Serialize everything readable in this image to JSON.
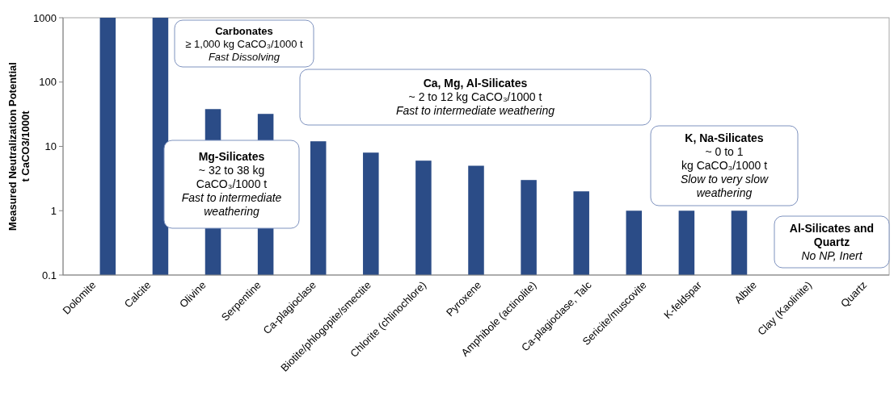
{
  "chart_data": {
    "type": "bar",
    "ylabel": "Measured Neutralization Potential\nt CaCO3/1000t",
    "categories": [
      "Dolomite",
      "Calcite",
      "Olivine",
      "Serpentine",
      "Ca-plagioclase",
      "Biotite/phlogopite/smectite",
      "Chlorite (chlinochlore)",
      "Pyroxene",
      "Amphibole (actinolite)",
      "Ca-plagioclase, Talc",
      "Sericite/muscovite",
      "K-feldspar",
      "Albite",
      "Clay (Kaolinite)",
      "Quartz"
    ],
    "values": [
      1000,
      1000,
      38,
      32,
      12,
      8,
      6,
      5,
      3,
      2,
      1,
      1,
      1,
      null,
      null
    ],
    "color": "#2b4c87",
    "log": true,
    "ylim": [
      0.1,
      1000
    ],
    "yticks": [
      0.1,
      1,
      10,
      100,
      1000
    ],
    "grid": false,
    "annotations": [
      "Carbonates\n≥ 1,000 kg CaCO₃/1000 t\nFast Dissolving",
      "Ca, Mg, Al-Silicates\n~ 2 to 12 kg CaCO₃/1000 t\nFast to intermediate weathering",
      "Mg-Silicates\n~ 32 to 38 kg\nCaCO₃/1000 t\nFast to intermediate\nweathering",
      "K, Na-Silicates\n~ 0 to 1\nkg CaCO₃/1000 t\nSlow to very slow\nweathering",
      "Al-Silicates and\nQuartz\nNo NP, Inert"
    ]
  }
}
